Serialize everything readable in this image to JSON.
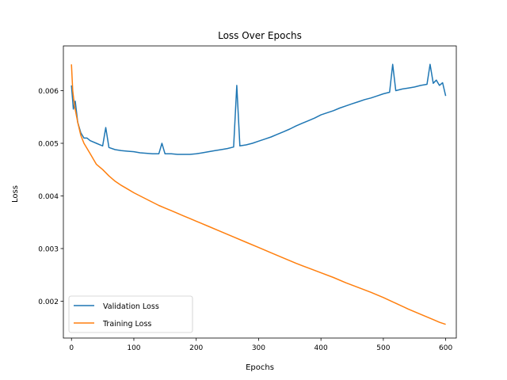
{
  "chart_data": {
    "type": "line",
    "title": "Loss Over Epochs",
    "xlabel": "Epochs",
    "ylabel": "Loss",
    "xlim": [
      -13,
      617
    ],
    "ylim": [
      0.0013,
      0.00685
    ],
    "xticks": [
      0,
      100,
      200,
      300,
      400,
      500,
      600
    ],
    "yticks": [
      0.002,
      0.003,
      0.004,
      0.005,
      0.006
    ],
    "ytick_labels": [
      "0.002",
      "0.003",
      "0.004",
      "0.005",
      "0.006"
    ],
    "grid": false,
    "legend_position": "lower-left",
    "series": [
      {
        "name": "Validation Loss",
        "color": "#1f77b4",
        "x": [
          0,
          3,
          6,
          10,
          15,
          20,
          25,
          30,
          40,
          50,
          55,
          60,
          70,
          80,
          90,
          100,
          110,
          120,
          130,
          140,
          145,
          150,
          160,
          170,
          180,
          190,
          200,
          210,
          220,
          230,
          240,
          250,
          260,
          265,
          270,
          280,
          290,
          300,
          310,
          320,
          330,
          340,
          350,
          360,
          370,
          380,
          390,
          400,
          410,
          420,
          430,
          440,
          450,
          460,
          470,
          480,
          490,
          500,
          510,
          515,
          520,
          530,
          540,
          550,
          560,
          570,
          575,
          580,
          585,
          590,
          595,
          600
        ],
        "y": [
          0.0061,
          0.00565,
          0.0058,
          0.0054,
          0.0052,
          0.0051,
          0.0051,
          0.00505,
          0.005,
          0.00495,
          0.0053,
          0.00492,
          0.00488,
          0.00486,
          0.00485,
          0.00484,
          0.00482,
          0.00481,
          0.0048,
          0.0048,
          0.005,
          0.0048,
          0.0048,
          0.00479,
          0.00479,
          0.00479,
          0.0048,
          0.00482,
          0.00484,
          0.00486,
          0.00488,
          0.0049,
          0.00493,
          0.0061,
          0.00495,
          0.00497,
          0.005,
          0.00504,
          0.00508,
          0.00512,
          0.00517,
          0.00522,
          0.00527,
          0.00533,
          0.00538,
          0.00543,
          0.00548,
          0.00554,
          0.00558,
          0.00562,
          0.00567,
          0.00571,
          0.00575,
          0.00579,
          0.00583,
          0.00586,
          0.0059,
          0.00594,
          0.00597,
          0.0065,
          0.006,
          0.00603,
          0.00605,
          0.00607,
          0.0061,
          0.00612,
          0.0065,
          0.00614,
          0.0062,
          0.0061,
          0.00615,
          0.0059
        ]
      },
      {
        "name": "Training Loss",
        "color": "#ff7f0e",
        "x": [
          0,
          2,
          5,
          10,
          15,
          20,
          30,
          40,
          50,
          60,
          70,
          80,
          90,
          100,
          110,
          120,
          130,
          140,
          150,
          160,
          170,
          180,
          190,
          200,
          220,
          240,
          260,
          280,
          300,
          320,
          340,
          360,
          380,
          400,
          420,
          440,
          460,
          480,
          500,
          520,
          540,
          560,
          580,
          590,
          600
        ],
        "y": [
          0.0065,
          0.006,
          0.0057,
          0.0054,
          0.00515,
          0.005,
          0.0048,
          0.0046,
          0.0045,
          0.00438,
          0.00428,
          0.0042,
          0.00413,
          0.00406,
          0.004,
          0.00394,
          0.00388,
          0.00382,
          0.00377,
          0.00372,
          0.00367,
          0.00362,
          0.00357,
          0.00352,
          0.00342,
          0.00332,
          0.00322,
          0.00312,
          0.00302,
          0.00292,
          0.00282,
          0.00272,
          0.00263,
          0.00254,
          0.00245,
          0.00235,
          0.00226,
          0.00217,
          0.00207,
          0.00196,
          0.00185,
          0.00175,
          0.00165,
          0.0016,
          0.00156
        ]
      }
    ]
  }
}
